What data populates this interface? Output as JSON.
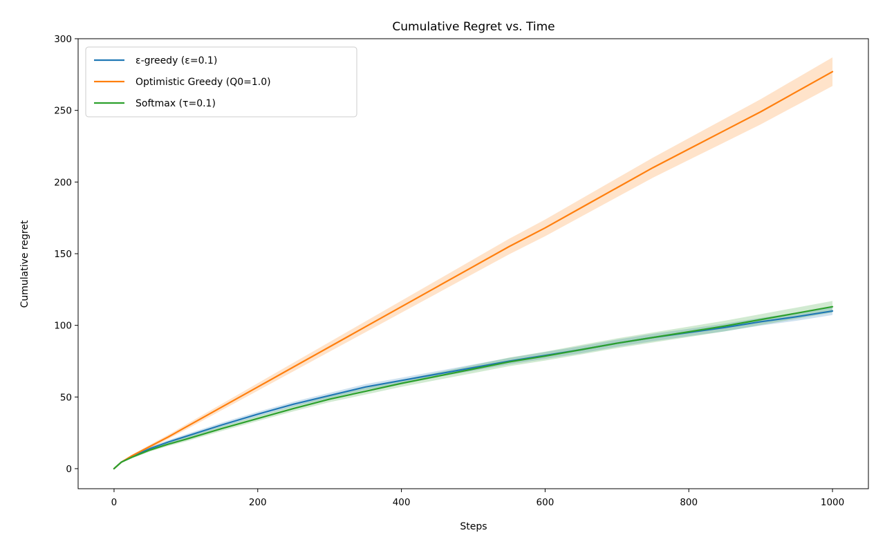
{
  "chart_data": {
    "type": "line",
    "title": "Cumulative Regret vs. Time",
    "xlabel": "Steps",
    "ylabel": "Cumulative regret",
    "xlim": [
      -50,
      1050
    ],
    "ylim": [
      -14,
      300
    ],
    "xticks": [
      0,
      200,
      400,
      600,
      800,
      1000
    ],
    "yticks": [
      0,
      50,
      100,
      150,
      200,
      250,
      300
    ],
    "grid": false,
    "legend_position": "upper-left",
    "has_confidence_bands": true,
    "series": [
      {
        "name": "ε-greedy (ε=0.1)",
        "color": "#1f77b4",
        "x": [
          0,
          10,
          25,
          50,
          75,
          100,
          150,
          200,
          250,
          300,
          350,
          400,
          450,
          500,
          550,
          600,
          650,
          700,
          750,
          800,
          850,
          900,
          950,
          1000
        ],
        "y": [
          0,
          4.5,
          8.5,
          14,
          18.5,
          22.5,
          30.5,
          38,
          45,
          51,
          57,
          61.5,
          66,
          70.5,
          75,
          79,
          83,
          87.5,
          91.5,
          95,
          98.5,
          102.5,
          106,
          110
        ],
        "band": [
          0,
          0.5,
          0.8,
          1.1,
          1.3,
          1.5,
          1.6,
          1.7,
          1.8,
          1.9,
          2.0,
          2.0,
          2.1,
          2.2,
          2.3,
          2.4,
          2.5,
          2.5,
          2.6,
          2.6,
          2.7,
          2.7,
          2.8,
          2.8
        ]
      },
      {
        "name": "Optimistic Greedy (Q0=1.0)",
        "color": "#ff7f0e",
        "x": [
          0,
          10,
          25,
          50,
          75,
          100,
          150,
          200,
          250,
          300,
          350,
          400,
          450,
          500,
          550,
          600,
          650,
          700,
          750,
          800,
          850,
          900,
          950,
          1000
        ],
        "y": [
          0,
          4.5,
          9,
          15.5,
          22,
          29,
          43,
          57,
          71,
          85,
          99,
          113,
          127,
          141,
          155,
          168,
          182,
          196,
          210,
          223,
          236,
          249,
          263,
          277
        ],
        "band": [
          0,
          0.5,
          0.8,
          1.2,
          1.5,
          1.8,
          2.2,
          2.6,
          3.0,
          3.4,
          3.8,
          4.2,
          4.6,
          5.0,
          5.4,
          5.8,
          6.2,
          6.6,
          7.0,
          7.6,
          8.2,
          8.8,
          9.4,
          10.0
        ]
      },
      {
        "name": "Softmax (τ=0.1)",
        "color": "#2ca02c",
        "x": [
          0,
          10,
          25,
          50,
          75,
          100,
          150,
          200,
          250,
          300,
          350,
          400,
          450,
          500,
          550,
          600,
          650,
          700,
          750,
          800,
          850,
          900,
          950,
          1000
        ],
        "y": [
          0,
          4.5,
          8,
          13,
          17,
          20.5,
          28,
          35,
          42,
          48.5,
          54,
          59.5,
          64.5,
          69.5,
          74.5,
          78.5,
          83,
          87.5,
          91.5,
          95.5,
          99.5,
          104,
          108.5,
          113
        ],
        "band": [
          0,
          0.5,
          0.8,
          1.1,
          1.3,
          1.5,
          1.7,
          1.8,
          2.0,
          2.1,
          2.3,
          2.4,
          2.6,
          2.8,
          3.0,
          3.1,
          3.3,
          3.4,
          3.5,
          3.6,
          3.7,
          3.8,
          3.9,
          4.0
        ]
      }
    ]
  }
}
